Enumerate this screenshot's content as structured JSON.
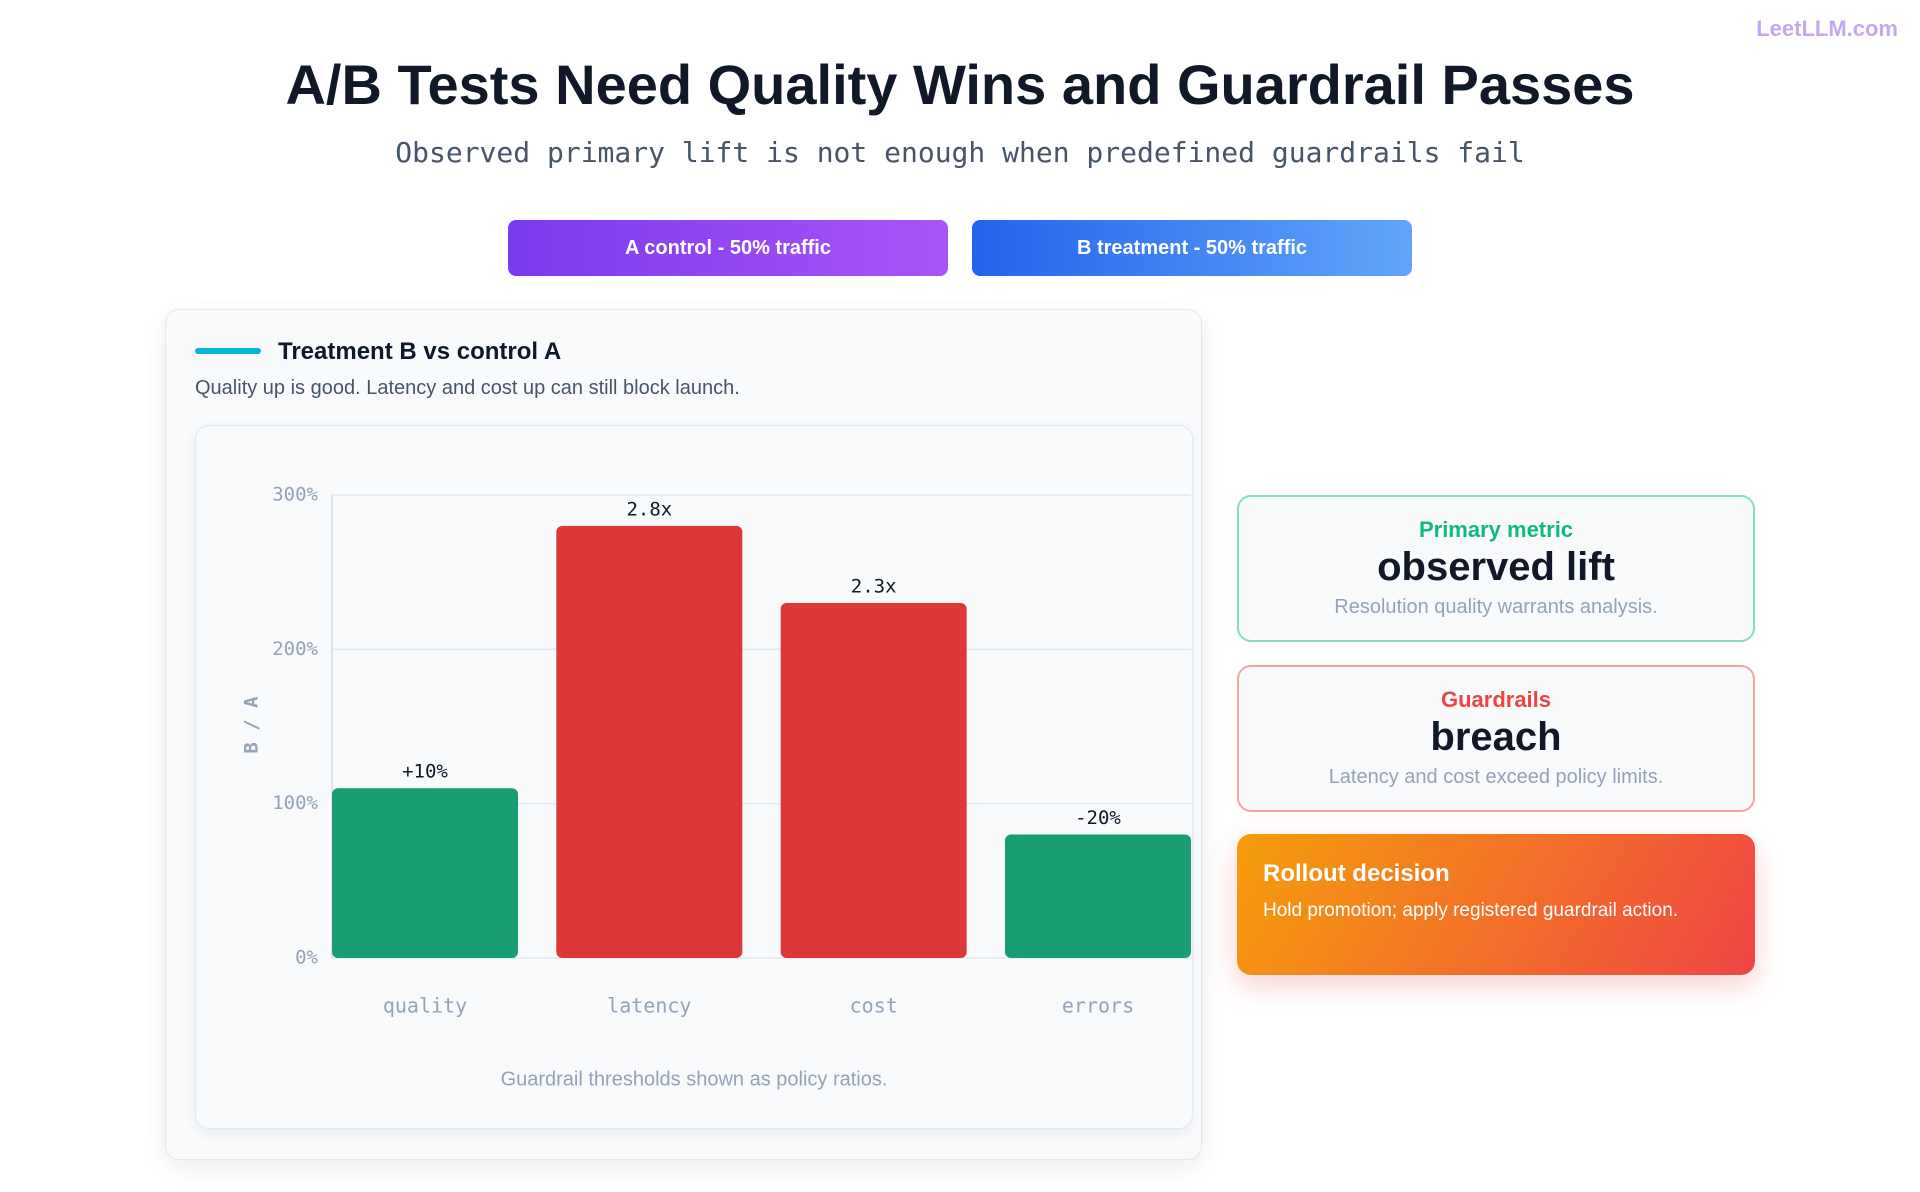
{
  "header": {
    "brand": "LeetLLM.com",
    "title": "A/B Tests Need Quality Wins and Guardrail Passes",
    "subtitle": "Observed primary lift is not enough when predefined guardrails fail"
  },
  "pills": [
    "A control - 50% traffic",
    "B treatment - 50% traffic"
  ],
  "card": {
    "title": "Treatment B vs control A",
    "subtitle": "Quality up is good. Latency and cost up can still block launch.",
    "footnote": "Guardrail thresholds shown as policy ratios."
  },
  "chart_data": {
    "type": "bar",
    "y_label": "B / A",
    "categories": [
      "quality",
      "latency",
      "cost",
      "errors"
    ],
    "values": [
      110,
      280,
      230,
      80
    ],
    "value_labels": [
      "+10%",
      "2.8x",
      "2.3x",
      "-20%"
    ],
    "colors": [
      "#199e73",
      "#dc3838",
      "#dc3838",
      "#199e73"
    ],
    "ylim": [
      0,
      300
    ],
    "yticks": [
      {
        "value": 0,
        "label": "0%"
      },
      {
        "value": 100,
        "label": "100%"
      },
      {
        "value": 200,
        "label": "200%"
      },
      {
        "value": 300,
        "label": "300%"
      }
    ],
    "grid": true
  },
  "side": [
    {
      "label": "Primary metric",
      "value": "observed lift",
      "desc": "Resolution quality warrants analysis."
    },
    {
      "label": "Guardrails",
      "value": "breach",
      "desc": "Latency and cost exceed policy limits."
    },
    {
      "label": "Rollout decision",
      "desc": "Hold promotion; apply registered guardrail action."
    }
  ]
}
